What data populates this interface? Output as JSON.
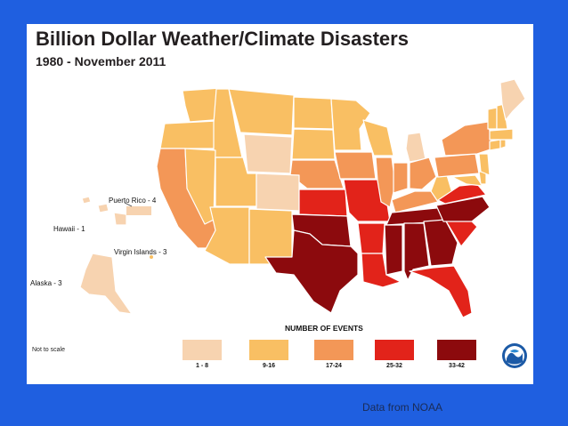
{
  "slide": {
    "title": "Billion Dollar Weather/Climate Disasters",
    "subtitle": "1980 - November 2011",
    "caption": "Data from NOAA",
    "not_to_scale": "Not to scale"
  },
  "territories": {
    "puerto_rico": "Puerto Rico - 4",
    "hawaii": "Hawaii - 1",
    "virgin_islands": "Virgin Islands - 3",
    "alaska": "Alaska - 3"
  },
  "legend": {
    "title": "NUMBER OF EVENTS",
    "items": [
      {
        "label": "1 - 8",
        "color": "#f7d3b0"
      },
      {
        "label": "9-16",
        "color": "#f9bf63"
      },
      {
        "label": "17-24",
        "color": "#f39757"
      },
      {
        "label": "25-32",
        "color": "#e2231a"
      },
      {
        "label": "33-42",
        "color": "#8c0a0d"
      }
    ]
  },
  "state_classes": {
    "1 - 8": [
      "WY",
      "CO",
      "MI",
      "ME",
      "AK",
      "HI"
    ],
    "9-16": [
      "WA",
      "OR",
      "ID",
      "MT",
      "ND",
      "SD",
      "MN",
      "WI",
      "NV",
      "UT",
      "AZ",
      "NM",
      "WV",
      "VT",
      "NH",
      "MA",
      "CT",
      "RI",
      "DE",
      "MD",
      "NJ"
    ],
    "17-24": [
      "CA",
      "NE",
      "IA",
      "IL",
      "IN",
      "OH",
      "KY",
      "PA",
      "NY"
    ],
    "25-32": [
      "KS",
      "MO",
      "AR",
      "LA",
      "VA",
      "SC",
      "FL"
    ],
    "33-42": [
      "OK",
      "TX",
      "MS",
      "AL",
      "GA",
      "TN",
      "NC"
    ]
  },
  "colors": {
    "background": "#1f5fe0",
    "panel": "#ffffff",
    "border": "#ffffff"
  }
}
